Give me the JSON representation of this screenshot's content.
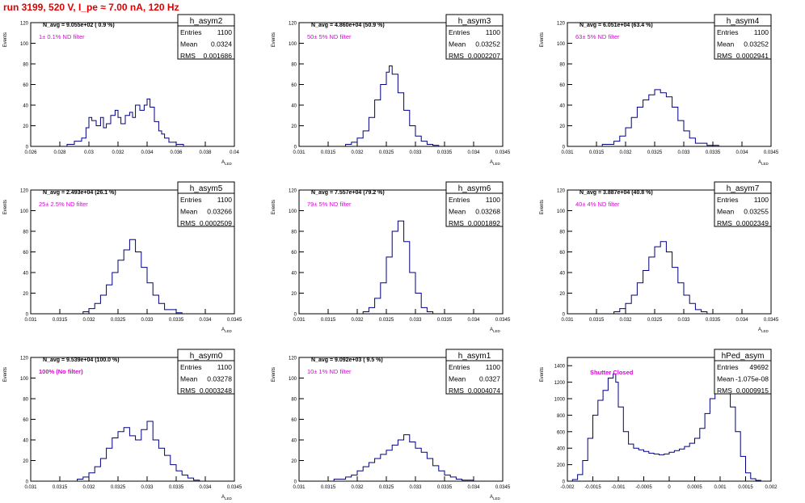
{
  "header": "run 3199,   520 V, I_pe ≈ 7.00 nA, 120 Hz",
  "colors": {
    "histogram": "#000080",
    "header": "#e00000",
    "filter_label": "#e000e0",
    "frame": "#000000"
  },
  "chart_data": [
    {
      "type": "bar",
      "name": "h_asym2",
      "stats": {
        "entries": "1100",
        "mean": "0.0324",
        "rms": "0.001686"
      },
      "navg": "N_avg = 9.055e+02 ( 0.9 %)",
      "filter": "1± 0.1% ND filter",
      "xlabel": "A_LED",
      "ylabel": "Events",
      "xlim": [
        0.026,
        0.04
      ],
      "ylim": [
        0,
        120
      ],
      "xticks": [
        "0.026",
        "0.028",
        "0.03",
        "0.032",
        "0.034",
        "0.036",
        "0.038",
        "0.04"
      ],
      "yticks": [
        "0",
        "20",
        "40",
        "60",
        "80",
        "100",
        "120"
      ],
      "x": [
        0.0285,
        0.029,
        0.0295,
        0.0298,
        0.03,
        0.0302,
        0.0305,
        0.0308,
        0.031,
        0.0312,
        0.0315,
        0.0318,
        0.032,
        0.0322,
        0.0325,
        0.0328,
        0.033,
        0.0332,
        0.0335,
        0.0338,
        0.034,
        0.0342,
        0.0345,
        0.0348,
        0.035,
        0.0352,
        0.0355,
        0.036
      ],
      "values": [
        2,
        5,
        8,
        18,
        28,
        25,
        20,
        28,
        18,
        22,
        30,
        35,
        28,
        22,
        30,
        33,
        28,
        40,
        35,
        40,
        46,
        38,
        24,
        15,
        12,
        8,
        4,
        2
      ]
    },
    {
      "type": "bar",
      "name": "h_asym3",
      "stats": {
        "entries": "1100",
        "mean": "0.03252",
        "rms": "0.0002207"
      },
      "navg": "N_avg = 4.860e+04 (50.9 %)",
      "filter": "50± 5% ND filter",
      "xlabel": "A_LED",
      "ylabel": "Events",
      "xlim": [
        0.031,
        0.0345
      ],
      "ylim": [
        0,
        120
      ],
      "xticks": [
        "0.031",
        "0.0315",
        "0.032",
        "0.0325",
        "0.033",
        "0.0335",
        "0.034",
        "0.0345"
      ],
      "yticks": [
        "0",
        "20",
        "40",
        "60",
        "80",
        "100",
        "120"
      ],
      "x": [
        0.0318,
        0.0319,
        0.032,
        0.0321,
        0.0322,
        0.0323,
        0.0324,
        0.0325,
        0.03255,
        0.0326,
        0.0327,
        0.0328,
        0.0329,
        0.033,
        0.0331,
        0.0332,
        0.0333
      ],
      "values": [
        2,
        4,
        8,
        15,
        28,
        45,
        60,
        72,
        78,
        70,
        52,
        35,
        20,
        10,
        5,
        2,
        1
      ]
    },
    {
      "type": "bar",
      "name": "h_asym4",
      "stats": {
        "entries": "1100",
        "mean": "0.03252",
        "rms": "0.0002941"
      },
      "navg": "N_avg = 6.051e+04 (63.4 %)",
      "filter": "63± 5% ND filter",
      "xlabel": "A_LED",
      "ylabel": "Events",
      "xlim": [
        0.031,
        0.0345
      ],
      "ylim": [
        0,
        120
      ],
      "xticks": [
        "0.031",
        "0.0315",
        "0.032",
        "0.0325",
        "0.033",
        "0.0335",
        "0.034",
        "0.0345"
      ],
      "yticks": [
        "0",
        "20",
        "40",
        "60",
        "80",
        "100",
        "120"
      ],
      "x": [
        0.0316,
        0.0318,
        0.0319,
        0.032,
        0.0321,
        0.0322,
        0.0323,
        0.0324,
        0.0325,
        0.0326,
        0.0327,
        0.0328,
        0.0329,
        0.033,
        0.0331,
        0.0332,
        0.0334
      ],
      "values": [
        2,
        5,
        10,
        18,
        28,
        38,
        45,
        50,
        55,
        52,
        48,
        38,
        25,
        15,
        8,
        3,
        1
      ]
    },
    {
      "type": "bar",
      "name": "h_asym5",
      "stats": {
        "entries": "1100",
        "mean": "0.03266",
        "rms": "0.0002509"
      },
      "navg": "N_avg = 2.493e+04 (26.1 %)",
      "filter": "25± 2.5% ND filter",
      "xlabel": "A_LED",
      "ylabel": "Events",
      "xlim": [
        0.031,
        0.0345
      ],
      "ylim": [
        0,
        120
      ],
      "xticks": [
        "0.031",
        "0.0315",
        "0.032",
        "0.0325",
        "0.033",
        "0.0335",
        "0.034",
        "0.0345"
      ],
      "yticks": [
        "0",
        "20",
        "40",
        "60",
        "80",
        "100",
        "120"
      ],
      "x": [
        0.0319,
        0.032,
        0.0321,
        0.0322,
        0.0323,
        0.0324,
        0.0325,
        0.0326,
        0.0327,
        0.0328,
        0.0329,
        0.033,
        0.0331,
        0.0332,
        0.0333,
        0.0335
      ],
      "values": [
        2,
        5,
        10,
        18,
        28,
        40,
        52,
        62,
        72,
        60,
        45,
        30,
        18,
        10,
        4,
        1
      ]
    },
    {
      "type": "bar",
      "name": "h_asym6",
      "stats": {
        "entries": "1100",
        "mean": "0.03268",
        "rms": "0.0001892"
      },
      "navg": "N_avg = 7.557e+04 (79.2 %)",
      "filter": "79± 5% ND filter",
      "xlabel": "A_LED",
      "ylabel": "Events",
      "xlim": [
        0.031,
        0.0345
      ],
      "ylim": [
        0,
        120
      ],
      "xticks": [
        "0.031",
        "0.0315",
        "0.032",
        "0.0325",
        "0.033",
        "0.0335",
        "0.034",
        "0.0345"
      ],
      "yticks": [
        "0",
        "20",
        "40",
        "60",
        "80",
        "100",
        "120"
      ],
      "x": [
        0.0321,
        0.0322,
        0.0323,
        0.0324,
        0.0325,
        0.0326,
        0.0327,
        0.0328,
        0.0329,
        0.033,
        0.0331,
        0.0332
      ],
      "values": [
        2,
        6,
        15,
        30,
        55,
        80,
        90,
        70,
        40,
        20,
        6,
        2
      ]
    },
    {
      "type": "bar",
      "name": "h_asym7",
      "stats": {
        "entries": "1100",
        "mean": "0.03255",
        "rms": "0.0002349"
      },
      "navg": "N_avg = 3.887e+04 (40.8 %)",
      "filter": "40± 4% ND filter",
      "xlabel": "A_LED",
      "ylabel": "Events",
      "xlim": [
        0.031,
        0.0345
      ],
      "ylim": [
        0,
        120
      ],
      "xticks": [
        "0.031",
        "0.0315",
        "0.032",
        "0.0325",
        "0.033",
        "0.0335",
        "0.034",
        "0.0345"
      ],
      "yticks": [
        "0",
        "20",
        "40",
        "60",
        "80",
        "100",
        "120"
      ],
      "x": [
        0.0318,
        0.0319,
        0.032,
        0.0321,
        0.0322,
        0.0323,
        0.0324,
        0.0325,
        0.0326,
        0.0327,
        0.0328,
        0.0329,
        0.033,
        0.0331,
        0.0332,
        0.0333
      ],
      "values": [
        2,
        5,
        10,
        18,
        30,
        42,
        55,
        65,
        70,
        60,
        45,
        30,
        18,
        10,
        4,
        2
      ]
    },
    {
      "type": "bar",
      "name": "h_asym0",
      "stats": {
        "entries": "1100",
        "mean": "0.03278",
        "rms": "0.0003248"
      },
      "navg": "N_avg = 9.539e+04 (100.0 %)",
      "filter": "100% (No filter)",
      "xlabel": "A_LED",
      "ylabel": "Events",
      "xlim": [
        0.031,
        0.0345
      ],
      "ylim": [
        0,
        120
      ],
      "xticks": [
        "0.031",
        "0.0315",
        "0.032",
        "0.0325",
        "0.033",
        "0.0335",
        "0.034",
        "0.0345"
      ],
      "yticks": [
        "0",
        "20",
        "40",
        "60",
        "80",
        "100",
        "120"
      ],
      "x": [
        0.0318,
        0.0319,
        0.032,
        0.0321,
        0.0322,
        0.0323,
        0.0324,
        0.0325,
        0.0326,
        0.0327,
        0.0328,
        0.0329,
        0.033,
        0.0331,
        0.0332,
        0.0333,
        0.0334,
        0.0335,
        0.0336,
        0.0337,
        0.0338
      ],
      "values": [
        2,
        4,
        8,
        14,
        22,
        32,
        42,
        48,
        52,
        44,
        40,
        50,
        58,
        40,
        32,
        25,
        16,
        10,
        6,
        3,
        1
      ]
    },
    {
      "type": "bar",
      "name": "h_asym1",
      "stats": {
        "entries": "1100",
        "mean": "0.0327",
        "rms": "0.0004074"
      },
      "navg": "N_avg = 9.092e+03 ( 9.5 %)",
      "filter": "10± 1% ND filter",
      "xlabel": "A_LED",
      "ylabel": "Events",
      "xlim": [
        0.031,
        0.0345
      ],
      "ylim": [
        0,
        120
      ],
      "xticks": [
        "0.031",
        "0.0315",
        "0.032",
        "0.0325",
        "0.033",
        "0.0335",
        "0.034",
        "0.0345"
      ],
      "yticks": [
        "0",
        "20",
        "40",
        "60",
        "80",
        "100",
        "120"
      ],
      "x": [
        0.0316,
        0.0318,
        0.0319,
        0.032,
        0.0321,
        0.0322,
        0.0323,
        0.0324,
        0.0325,
        0.0326,
        0.0327,
        0.0328,
        0.0329,
        0.033,
        0.0331,
        0.0332,
        0.0333,
        0.0334,
        0.0335,
        0.0336,
        0.0337,
        0.0338
      ],
      "values": [
        2,
        4,
        6,
        10,
        14,
        18,
        22,
        26,
        30,
        35,
        40,
        45,
        38,
        32,
        28,
        22,
        15,
        10,
        6,
        4,
        2,
        1
      ]
    },
    {
      "type": "bar",
      "name": "hPed_asym",
      "stats": {
        "entries": "49692",
        "mean": "-1.075e-08",
        "rms": "0.0009915"
      },
      "navg": "",
      "filter": "Shutter Closed",
      "xlabel": "",
      "ylabel": "Events",
      "xlim": [
        -0.002,
        0.002
      ],
      "ylim": [
        0,
        1500
      ],
      "xticks": [
        "-0.002",
        "-0.0015",
        "-0.001",
        "-0.0005",
        "0",
        "0.0005",
        "0.001",
        "0.0015",
        "0.002"
      ],
      "yticks": [
        "0",
        "200",
        "400",
        "600",
        "800",
        "1000",
        "1200",
        "1400"
      ],
      "x": [
        -0.0019,
        -0.0018,
        -0.0017,
        -0.0016,
        -0.0015,
        -0.0014,
        -0.0013,
        -0.0012,
        -0.0011,
        -0.00105,
        -0.001,
        -0.0009,
        -0.0008,
        -0.0007,
        -0.0006,
        -0.0005,
        -0.0004,
        -0.0003,
        -0.0002,
        -0.0001,
        0,
        0.0001,
        0.0002,
        0.0003,
        0.0004,
        0.0005,
        0.0006,
        0.0007,
        0.0008,
        0.0009,
        0.001,
        0.00105,
        0.0011,
        0.0012,
        0.0013,
        0.0014,
        0.0015,
        0.0016,
        0.0017
      ],
      "values": [
        20,
        80,
        250,
        520,
        800,
        980,
        1100,
        1250,
        1300,
        1200,
        900,
        600,
        450,
        400,
        380,
        360,
        340,
        330,
        320,
        330,
        350,
        370,
        390,
        420,
        460,
        520,
        640,
        820,
        1000,
        1140,
        1190,
        1260,
        1180,
        900,
        600,
        300,
        100,
        30,
        10
      ]
    }
  ]
}
